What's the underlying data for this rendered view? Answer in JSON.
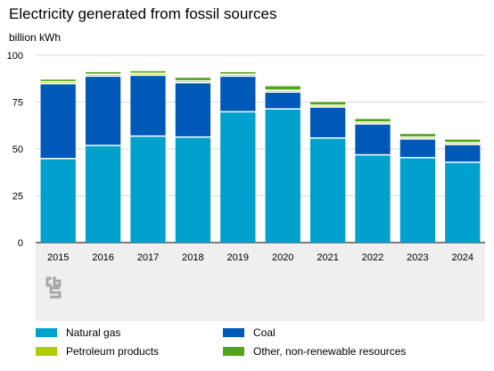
{
  "chart_data": {
    "type": "bar",
    "stacked": true,
    "title": "Electricity generated from fossil sources",
    "ylabel": "billion kWh",
    "xlabel": "",
    "ylim": [
      0,
      100
    ],
    "yticks": [
      0,
      25,
      50,
      75,
      100
    ],
    "grid": true,
    "legend_position": "bottom",
    "categories": [
      "2015",
      "2016",
      "2017",
      "2018",
      "2019",
      "2020",
      "2021",
      "2022",
      "2023",
      "2024"
    ],
    "series": [
      {
        "name": "Natural gas",
        "color": "#00a1cd",
        "values": [
          44.5,
          51.5,
          56.5,
          56.0,
          69.5,
          71.0,
          55.5,
          46.5,
          45.0,
          42.5
        ]
      },
      {
        "name": "Coal",
        "color": "#0058b8",
        "values": [
          40.0,
          37.0,
          32.5,
          29.0,
          19.0,
          9.0,
          16.5,
          16.5,
          10.0,
          9.5
        ]
      },
      {
        "name": "Petroleum products",
        "color": "#afcb05",
        "values": [
          1.0,
          1.0,
          1.0,
          1.0,
          1.0,
          1.0,
          1.0,
          1.0,
          1.0,
          1.0
        ]
      },
      {
        "name": "Other, non-renewable resources",
        "color": "#53a31d",
        "values": [
          1.5,
          1.5,
          1.5,
          2.0,
          1.5,
          2.5,
          2.0,
          2.0,
          2.0,
          2.0
        ]
      }
    ]
  }
}
